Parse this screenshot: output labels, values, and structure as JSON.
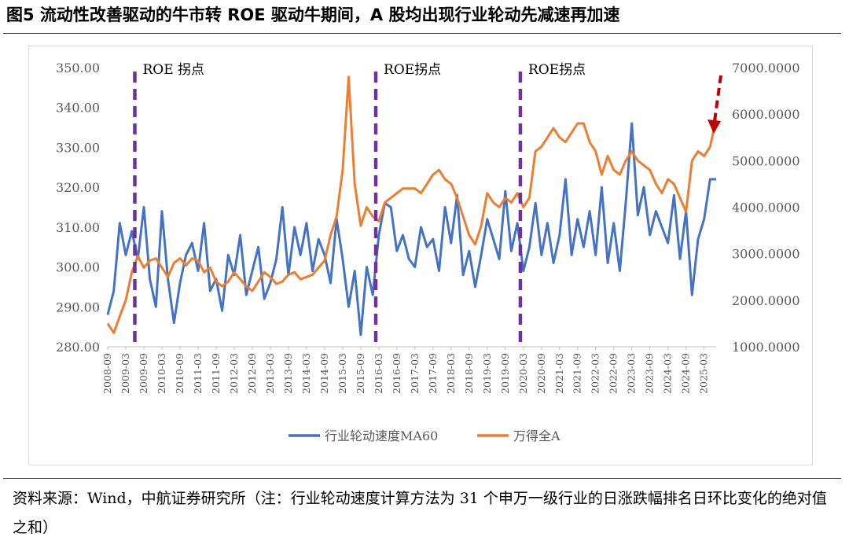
{
  "header": {
    "title": "图5 流动性改善驱动的牛市转 ROE 驱动牛期间，A 股均出现行业轮动先减速再加速"
  },
  "footer": {
    "source": "资料来源：Wind，中航证券研究所（注：行业轮动速度计算方法为 31 个申万一级行业的日涨跌幅排名日环比变化的绝对值之和）"
  },
  "chart_data": {
    "type": "line",
    "x_ticks": [
      "2008-09",
      "2009-03",
      "2009-09",
      "2010-03",
      "2010-09",
      "2011-03",
      "2011-09",
      "2012-03",
      "2012-09",
      "2013-03",
      "2013-09",
      "2014-03",
      "2014-09",
      "2015-03",
      "2015-09",
      "2016-03",
      "2016-09",
      "2017-03",
      "2017-09",
      "2018-03",
      "2018-09",
      "2019-03",
      "2019-09",
      "2020-03",
      "2020-09",
      "2021-03",
      "2021-09",
      "2022-03",
      "2022-09",
      "2023-03",
      "2023-09",
      "2024-03",
      "2024-09",
      "2025-03"
    ],
    "y_left": {
      "min": 280,
      "max": 350,
      "ticks": [
        "280.00",
        "290.00",
        "300.00",
        "310.00",
        "320.00",
        "330.00",
        "340.00",
        "350.00"
      ]
    },
    "y_right": {
      "min": 1000,
      "max": 7000,
      "ticks": [
        "1000.0000",
        "2000.0000",
        "3000.0000",
        "4000.0000",
        "5000.0000",
        "6000.0000",
        "7000.0000"
      ]
    },
    "series": [
      {
        "name": "行业轮动速度MA60",
        "axis": "left",
        "color": "#4472C4",
        "x": [
          "2008-09",
          "2008-11",
          "2009-01",
          "2009-03",
          "2009-05",
          "2009-07",
          "2009-09",
          "2009-11",
          "2010-01",
          "2010-03",
          "2010-05",
          "2010-07",
          "2010-09",
          "2010-11",
          "2011-01",
          "2011-03",
          "2011-05",
          "2011-07",
          "2011-09",
          "2011-11",
          "2012-01",
          "2012-03",
          "2012-05",
          "2012-07",
          "2012-09",
          "2012-11",
          "2013-01",
          "2013-03",
          "2013-05",
          "2013-07",
          "2013-09",
          "2013-11",
          "2014-01",
          "2014-03",
          "2014-05",
          "2014-07",
          "2014-09",
          "2014-11",
          "2015-01",
          "2015-03",
          "2015-05",
          "2015-07",
          "2015-09",
          "2015-11",
          "2016-01",
          "2016-03",
          "2016-05",
          "2016-07",
          "2016-09",
          "2016-11",
          "2017-01",
          "2017-03",
          "2017-05",
          "2017-07",
          "2017-09",
          "2017-11",
          "2018-01",
          "2018-03",
          "2018-05",
          "2018-07",
          "2018-09",
          "2018-11",
          "2019-01",
          "2019-03",
          "2019-05",
          "2019-07",
          "2019-09",
          "2019-11",
          "2020-01",
          "2020-03",
          "2020-05",
          "2020-07",
          "2020-09",
          "2020-11",
          "2021-01",
          "2021-03",
          "2021-05",
          "2021-07",
          "2021-09",
          "2021-11",
          "2022-01",
          "2022-03",
          "2022-05",
          "2022-07",
          "2022-09",
          "2022-11",
          "2023-01",
          "2023-03",
          "2023-05",
          "2023-07",
          "2023-09",
          "2023-11",
          "2024-01",
          "2024-03",
          "2024-05",
          "2024-07",
          "2024-09",
          "2024-11",
          "2025-01",
          "2025-03",
          "2025-05",
          "2025-07"
        ],
        "values": [
          288,
          294,
          311,
          303,
          309,
          302,
          315,
          297,
          290,
          314,
          297,
          286,
          296,
          303,
          306,
          299,
          311,
          294,
          297,
          289,
          303,
          298,
          308,
          293,
          299,
          305,
          292,
          296,
          302,
          315,
          298,
          310,
          303,
          311,
          299,
          307,
          303,
          296,
          312,
          302,
          290,
          299,
          283,
          300,
          293,
          308,
          316,
          315,
          304,
          308,
          302,
          300,
          310,
          305,
          307,
          299,
          315,
          306,
          318,
          298,
          304,
          295,
          303,
          312,
          307,
          302,
          319,
          304,
          311,
          299,
          305,
          316,
          303,
          311,
          301,
          308,
          322,
          303,
          312,
          305,
          314,
          303,
          320,
          301,
          311,
          299,
          316,
          336,
          313,
          320,
          308,
          314,
          310,
          306,
          318,
          302,
          314,
          293,
          307,
          312,
          322,
          322
        ]
      },
      {
        "name": "万得全A",
        "axis": "right",
        "color": "#ED7D31",
        "x": [
          "2008-09",
          "2008-11",
          "2009-01",
          "2009-03",
          "2009-05",
          "2009-07",
          "2009-09",
          "2009-11",
          "2010-01",
          "2010-03",
          "2010-05",
          "2010-07",
          "2010-09",
          "2010-11",
          "2011-01",
          "2011-03",
          "2011-05",
          "2011-07",
          "2011-09",
          "2011-11",
          "2012-01",
          "2012-03",
          "2012-05",
          "2012-07",
          "2012-09",
          "2012-11",
          "2013-01",
          "2013-03",
          "2013-05",
          "2013-07",
          "2013-09",
          "2013-11",
          "2014-01",
          "2014-03",
          "2014-05",
          "2014-07",
          "2014-09",
          "2014-11",
          "2015-01",
          "2015-03",
          "2015-05",
          "2015-07",
          "2015-09",
          "2015-11",
          "2016-01",
          "2016-03",
          "2016-05",
          "2016-07",
          "2016-09",
          "2016-11",
          "2017-01",
          "2017-03",
          "2017-05",
          "2017-07",
          "2017-09",
          "2017-11",
          "2018-01",
          "2018-03",
          "2018-05",
          "2018-07",
          "2018-09",
          "2018-11",
          "2019-01",
          "2019-03",
          "2019-05",
          "2019-07",
          "2019-09",
          "2019-11",
          "2020-01",
          "2020-03",
          "2020-05",
          "2020-07",
          "2020-09",
          "2020-11",
          "2021-01",
          "2021-03",
          "2021-05",
          "2021-07",
          "2021-09",
          "2021-11",
          "2022-01",
          "2022-03",
          "2022-05",
          "2022-07",
          "2022-09",
          "2022-11",
          "2023-01",
          "2023-03",
          "2023-05",
          "2023-07",
          "2023-09",
          "2023-11",
          "2024-01",
          "2024-03",
          "2024-05",
          "2024-07",
          "2024-09",
          "2024-11",
          "2025-01",
          "2025-03",
          "2025-05",
          "2025-07"
        ],
        "values": [
          1500,
          1300,
          1650,
          2000,
          2600,
          2950,
          2700,
          2850,
          2900,
          2700,
          2500,
          2800,
          2900,
          2750,
          2900,
          2850,
          2600,
          2700,
          2400,
          2300,
          2400,
          2600,
          2450,
          2300,
          2200,
          2400,
          2600,
          2500,
          2350,
          2400,
          2550,
          2600,
          2450,
          2500,
          2550,
          2700,
          2850,
          3400,
          3800,
          4800,
          6800,
          4500,
          3600,
          4000,
          3800,
          3700,
          4100,
          4200,
          4300,
          4400,
          4400,
          4400,
          4300,
          4500,
          4700,
          4800,
          4600,
          4500,
          4200,
          3800,
          3400,
          3200,
          3600,
          4300,
          4100,
          4000,
          4200,
          4100,
          4300,
          4000,
          4200,
          5200,
          5300,
          5500,
          5700,
          5500,
          5400,
          5600,
          5800,
          5800,
          5400,
          5200,
          4700,
          5100,
          4800,
          4700,
          5000,
          5200,
          5000,
          4900,
          4800,
          4500,
          4300,
          4600,
          4500,
          4200,
          3900,
          5000,
          5200,
          5100,
          5300,
          5900
        ]
      }
    ],
    "annotations": [
      "ROE 拐点",
      "ROE拐点",
      "ROE拐点"
    ],
    "legend": "bottom-center",
    "grid": false
  }
}
